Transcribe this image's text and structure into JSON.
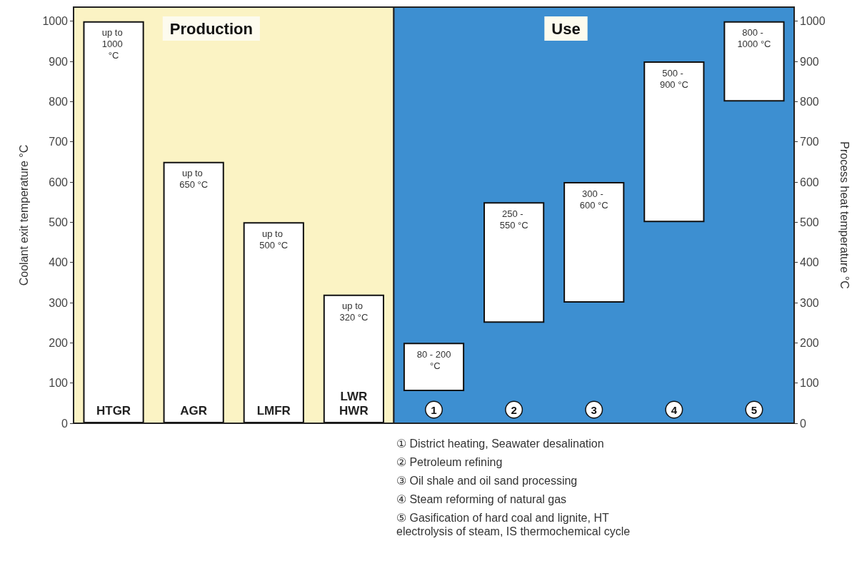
{
  "chart_data": {
    "type": "bar",
    "categories": [
      "HTGR",
      "AGR",
      "LMFR",
      "LWR\nHWR",
      "1",
      "2",
      "3",
      "4",
      "5"
    ],
    "series": [
      {
        "color": "#ffffff",
        "values": [
          1000,
          650,
          500,
          320,
          null,
          null,
          null,
          null,
          null
        ],
        "base": [
          0,
          0,
          0,
          0,
          null,
          null,
          null,
          null,
          null
        ],
        "value_labels": [
          "up to 1000 °C",
          "up to 650 °C",
          "up to 500 °C",
          "up to 320 °C",
          null,
          null,
          null,
          null,
          null
        ]
      },
      {
        "color": "#ffffff",
        "axis": "y2",
        "values": [
          null,
          null,
          null,
          null,
          120,
          300,
          300,
          400,
          200
        ],
        "base": [
          null,
          null,
          null,
          null,
          80,
          250,
          300,
          500,
          800
        ]
      }
    ],
    "ylabel": "Coolant exit temperature °C",
    "y2label": "Process heat temperature °C",
    "ylim": [
      0,
      1035
    ],
    "yticks": [
      0,
      100,
      200,
      300,
      400,
      500,
      600,
      700,
      800,
      900,
      1000
    ],
    "y2lim": [
      0,
      1035
    ],
    "y2ticks": [
      0,
      100,
      200,
      300,
      400,
      500,
      600,
      700,
      800,
      900,
      1000
    ],
    "bands": [
      {
        "axis": "x",
        "from": "HTGR",
        "to": "LWR\nHWR",
        "label": "Production",
        "color": "#fbf3c4"
      },
      {
        "axis": "x",
        "from": "1",
        "to": "5",
        "label": "Use",
        "color": "#3d8fd1"
      }
    ],
    "annotations": [
      {
        "text": "80 - 200 °C",
        "x": "1",
        "y": 200
      },
      {
        "text": "250 - 550 °C",
        "x": "2",
        "y": 550
      },
      {
        "text": "300 - 600 °C",
        "x": "3",
        "y": 600
      },
      {
        "text": "500 - 900 °C",
        "x": "4",
        "y": 900
      },
      {
        "text": "800 - 1000 °C",
        "x": "5",
        "y": 1000
      },
      "① District heating, Seawater desalination",
      "② Petroleum refining",
      "③ Oil shale and oil sand processing",
      "④ Steam reforming of natural gas",
      "⑤ Gasification of hard coal and lignite, HT electrolysis of steam, IS thermochemical cycle"
    ],
    "grid": false
  }
}
